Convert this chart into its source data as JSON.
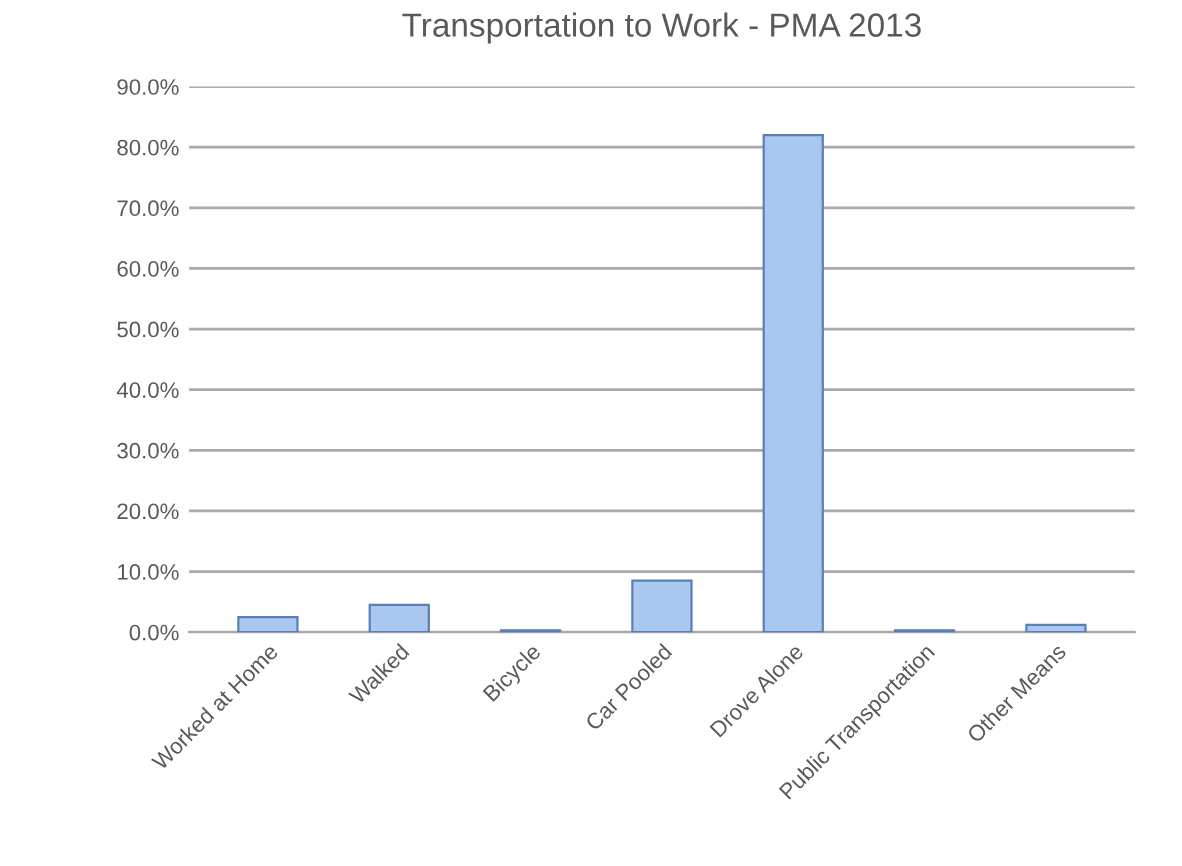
{
  "chart_data": {
    "type": "bar",
    "title": "Transportation to Work - PMA 2013",
    "categories": [
      "Worked at Home",
      "Walked",
      "Bicycle",
      "Car Pooled",
      "Drove Alone",
      "Public Transportation",
      "Other Means"
    ],
    "values": [
      2.5,
      4.5,
      0.3,
      8.5,
      82,
      0.3,
      1.2
    ],
    "color": "#a9c8f0",
    "ylim": [
      0,
      90
    ],
    "yticks": [
      {
        "value": 0,
        "label": "0.0%"
      },
      {
        "value": 10,
        "label": "10.0%"
      },
      {
        "value": 20,
        "label": "20.0%"
      },
      {
        "value": 30,
        "label": "30.0%"
      },
      {
        "value": 40,
        "label": "40.0%"
      },
      {
        "value": 50,
        "label": "50.0%"
      },
      {
        "value": 60,
        "label": "60.0%"
      },
      {
        "value": 70,
        "label": "70.0%"
      },
      {
        "value": 80,
        "label": "80.0%"
      },
      {
        "value": 90,
        "label": "90.0%"
      }
    ],
    "grid": "y"
  }
}
